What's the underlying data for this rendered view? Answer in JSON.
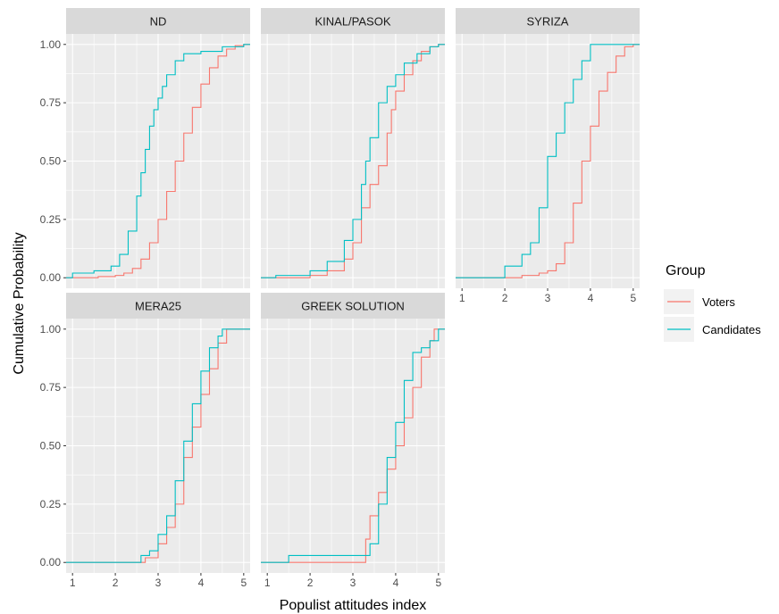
{
  "chart_data": {
    "type": "line",
    "subtype": "ecdf-step",
    "title": "",
    "xlabel": "Populist attitudes index",
    "ylabel": "Cumulative Probability",
    "xlim": [
      0.85,
      5.15
    ],
    "ylim": [
      -0.045,
      1.045
    ],
    "x_ticks": [
      1,
      2,
      3,
      4,
      5
    ],
    "y_ticks": [
      0,
      0.25,
      0.5,
      0.75,
      1
    ],
    "x_tick_labels": [
      "1",
      "2",
      "3",
      "4",
      "5"
    ],
    "y_tick_labels": [
      "0.00",
      "0.25",
      "0.50",
      "0.75",
      "1.00"
    ],
    "grid": true,
    "legend": {
      "title": "Group",
      "placement": "right",
      "entries": [
        {
          "name": "Voters",
          "color": "#F8766D"
        },
        {
          "name": "Candidates",
          "color": "#00BFC4"
        }
      ]
    },
    "panels": [
      {
        "name": "ND",
        "series": [
          {
            "name": "Voters",
            "color": "#F8766D",
            "points": [
              [
                0.85,
                0
              ],
              [
                1.2,
                0
              ],
              [
                1.6,
                0.005
              ],
              [
                2.0,
                0.01
              ],
              [
                2.2,
                0.02
              ],
              [
                2.4,
                0.04
              ],
              [
                2.6,
                0.08
              ],
              [
                2.8,
                0.15
              ],
              [
                3.0,
                0.25
              ],
              [
                3.2,
                0.37
              ],
              [
                3.4,
                0.5
              ],
              [
                3.6,
                0.62
              ],
              [
                3.8,
                0.73
              ],
              [
                4.0,
                0.83
              ],
              [
                4.2,
                0.9
              ],
              [
                4.4,
                0.95
              ],
              [
                4.6,
                0.98
              ],
              [
                4.8,
                0.995
              ],
              [
                5.0,
                1
              ],
              [
                5.15,
                1
              ]
            ]
          },
          {
            "name": "Candidates",
            "color": "#00BFC4",
            "points": [
              [
                0.85,
                0
              ],
              [
                1.0,
                0.02
              ],
              [
                1.5,
                0.03
              ],
              [
                1.9,
                0.05
              ],
              [
                2.1,
                0.1
              ],
              [
                2.3,
                0.2
              ],
              [
                2.5,
                0.35
              ],
              [
                2.6,
                0.45
              ],
              [
                2.7,
                0.55
              ],
              [
                2.8,
                0.65
              ],
              [
                2.9,
                0.72
              ],
              [
                3.0,
                0.77
              ],
              [
                3.1,
                0.82
              ],
              [
                3.2,
                0.87
              ],
              [
                3.4,
                0.93
              ],
              [
                3.6,
                0.96
              ],
              [
                4.0,
                0.97
              ],
              [
                4.5,
                0.99
              ],
              [
                5.0,
                1
              ],
              [
                5.15,
                1
              ]
            ]
          }
        ]
      },
      {
        "name": "KINAL/PASOK",
        "series": [
          {
            "name": "Voters",
            "color": "#F8766D",
            "points": [
              [
                0.85,
                0
              ],
              [
                1.4,
                0
              ],
              [
                2.0,
                0.01
              ],
              [
                2.4,
                0.03
              ],
              [
                2.8,
                0.08
              ],
              [
                3.0,
                0.15
              ],
              [
                3.2,
                0.3
              ],
              [
                3.4,
                0.4
              ],
              [
                3.6,
                0.48
              ],
              [
                3.8,
                0.62
              ],
              [
                3.9,
                0.72
              ],
              [
                4.0,
                0.8
              ],
              [
                4.2,
                0.87
              ],
              [
                4.4,
                0.93
              ],
              [
                4.6,
                0.97
              ],
              [
                4.8,
                0.99
              ],
              [
                5.0,
                1
              ],
              [
                5.15,
                1
              ]
            ]
          },
          {
            "name": "Candidates",
            "color": "#00BFC4",
            "points": [
              [
                0.85,
                0
              ],
              [
                1.2,
                0.01
              ],
              [
                2.0,
                0.03
              ],
              [
                2.4,
                0.07
              ],
              [
                2.8,
                0.16
              ],
              [
                3.0,
                0.25
              ],
              [
                3.2,
                0.4
              ],
              [
                3.3,
                0.5
              ],
              [
                3.4,
                0.6
              ],
              [
                3.6,
                0.75
              ],
              [
                3.8,
                0.82
              ],
              [
                4.0,
                0.87
              ],
              [
                4.2,
                0.92
              ],
              [
                4.5,
                0.96
              ],
              [
                4.8,
                0.99
              ],
              [
                5.0,
                1
              ],
              [
                5.15,
                1
              ]
            ]
          }
        ]
      },
      {
        "name": "SYRIZA",
        "series": [
          {
            "name": "Voters",
            "color": "#F8766D",
            "points": [
              [
                0.85,
                0
              ],
              [
                2.0,
                0
              ],
              [
                2.4,
                0.01
              ],
              [
                2.8,
                0.02
              ],
              [
                3.0,
                0.03
              ],
              [
                3.2,
                0.06
              ],
              [
                3.4,
                0.15
              ],
              [
                3.6,
                0.32
              ],
              [
                3.8,
                0.5
              ],
              [
                4.0,
                0.65
              ],
              [
                4.2,
                0.8
              ],
              [
                4.4,
                0.88
              ],
              [
                4.6,
                0.95
              ],
              [
                4.8,
                0.99
              ],
              [
                5.0,
                1
              ],
              [
                5.15,
                1
              ]
            ]
          },
          {
            "name": "Candidates",
            "color": "#00BFC4",
            "points": [
              [
                0.85,
                0
              ],
              [
                2.0,
                0
              ],
              [
                2.0,
                0.05
              ],
              [
                2.4,
                0.1
              ],
              [
                2.6,
                0.15
              ],
              [
                2.8,
                0.3
              ],
              [
                3.0,
                0.52
              ],
              [
                3.2,
                0.62
              ],
              [
                3.4,
                0.75
              ],
              [
                3.6,
                0.85
              ],
              [
                3.8,
                0.93
              ],
              [
                4.0,
                1
              ],
              [
                5.15,
                1
              ]
            ]
          }
        ]
      },
      {
        "name": "MERA25",
        "series": [
          {
            "name": "Voters",
            "color": "#F8766D",
            "points": [
              [
                0.85,
                0
              ],
              [
                2.5,
                0
              ],
              [
                2.7,
                0.02
              ],
              [
                3.0,
                0.08
              ],
              [
                3.2,
                0.15
              ],
              [
                3.4,
                0.25
              ],
              [
                3.6,
                0.45
              ],
              [
                3.8,
                0.58
              ],
              [
                4.0,
                0.72
              ],
              [
                4.2,
                0.83
              ],
              [
                4.4,
                0.94
              ],
              [
                4.6,
                1
              ],
              [
                5.15,
                1
              ]
            ]
          },
          {
            "name": "Candidates",
            "color": "#00BFC4",
            "points": [
              [
                0.85,
                0
              ],
              [
                2.6,
                0
              ],
              [
                2.6,
                0.03
              ],
              [
                2.8,
                0.05
              ],
              [
                3.0,
                0.12
              ],
              [
                3.2,
                0.2
              ],
              [
                3.4,
                0.35
              ],
              [
                3.6,
                0.52
              ],
              [
                3.8,
                0.68
              ],
              [
                4.0,
                0.82
              ],
              [
                4.2,
                0.92
              ],
              [
                4.4,
                0.97
              ],
              [
                4.5,
                1
              ],
              [
                5.15,
                1
              ]
            ]
          }
        ]
      },
      {
        "name": "GREEK SOLUTION",
        "series": [
          {
            "name": "Voters",
            "color": "#F8766D",
            "points": [
              [
                0.85,
                0
              ],
              [
                3.2,
                0
              ],
              [
                3.3,
                0.1
              ],
              [
                3.4,
                0.2
              ],
              [
                3.6,
                0.3
              ],
              [
                3.8,
                0.4
              ],
              [
                4.0,
                0.5
              ],
              [
                4.2,
                0.62
              ],
              [
                4.4,
                0.75
              ],
              [
                4.6,
                0.88
              ],
              [
                4.8,
                0.95
              ],
              [
                4.9,
                1
              ],
              [
                5.15,
                1
              ]
            ]
          },
          {
            "name": "Candidates",
            "color": "#00BFC4",
            "points": [
              [
                0.85,
                0
              ],
              [
                1.5,
                0
              ],
              [
                1.5,
                0.03
              ],
              [
                3.3,
                0.03
              ],
              [
                3.4,
                0.08
              ],
              [
                3.6,
                0.25
              ],
              [
                3.8,
                0.45
              ],
              [
                4.0,
                0.6
              ],
              [
                4.2,
                0.78
              ],
              [
                4.4,
                0.9
              ],
              [
                4.6,
                0.92
              ],
              [
                4.8,
                0.95
              ],
              [
                5.0,
                1
              ],
              [
                5.15,
                1
              ]
            ]
          }
        ]
      }
    ]
  }
}
